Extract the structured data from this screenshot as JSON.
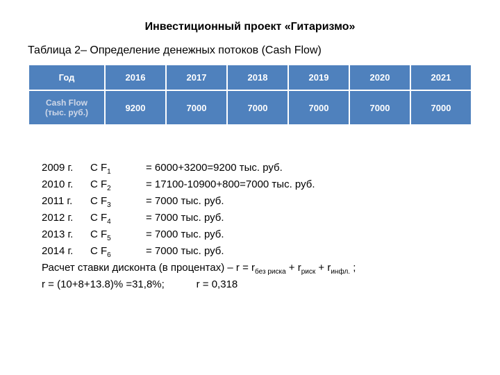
{
  "title": "Инвестиционный проект «Гитаризмо»",
  "subtitle": "Таблица 2– Определение денежных потоков (Cash Flow)",
  "table": {
    "header_label": "Год",
    "years": [
      "2016",
      "2017",
      "2018",
      "2019",
      "2020",
      "2021"
    ],
    "row_label": "Cash Flow (тыс. руб.)",
    "values": [
      "9200",
      "7000",
      "7000",
      "7000",
      "7000",
      "7000"
    ],
    "header_bg": "#4f81bd",
    "data_bg": "#4f81bd",
    "text_color": "#ffffff",
    "border_color": "#ffffff"
  },
  "calculations": [
    {
      "year": "2009 г.",
      "cf": "C F",
      "idx": "1",
      "val": "= 6000+3200=9200 тыс. руб."
    },
    {
      "year": "2010 г.",
      "cf": "C F",
      "idx": "2",
      "val": "= 17100-10900+800=7000 тыс. руб."
    },
    {
      "year": "2011 г.",
      "cf": "C F",
      "idx": "3",
      "val": "= 7000 тыс. руб."
    },
    {
      "year": "2012 г.",
      "cf": "C F",
      "idx": "4",
      "val": "= 7000 тыс. руб."
    },
    {
      "year": "2013 г.",
      "cf": "C F",
      "idx": "5",
      "val": "= 7000 тыс. руб."
    },
    {
      "year": "2014 г.",
      "cf": "C F",
      "idx": "6",
      "val": "= 7000 тыс. руб."
    }
  ],
  "discount": {
    "line1_prefix": "Расчет ставки дисконта (в процентах) – r = r",
    "line1_sub1": "без риска",
    "line1_mid1": " + r",
    "line1_sub2": "риск",
    "line1_mid2": " + r",
    "line1_sub3": "инфл.",
    "line1_suffix": " ;",
    "line2": "r = (10+8+13.8)% =31,8%;           r = 0,318"
  },
  "styling": {
    "background": "#ffffff",
    "title_fontsize": 16,
    "body_fontsize": 15,
    "table_fontsize": 13,
    "font_family": "Arial"
  }
}
